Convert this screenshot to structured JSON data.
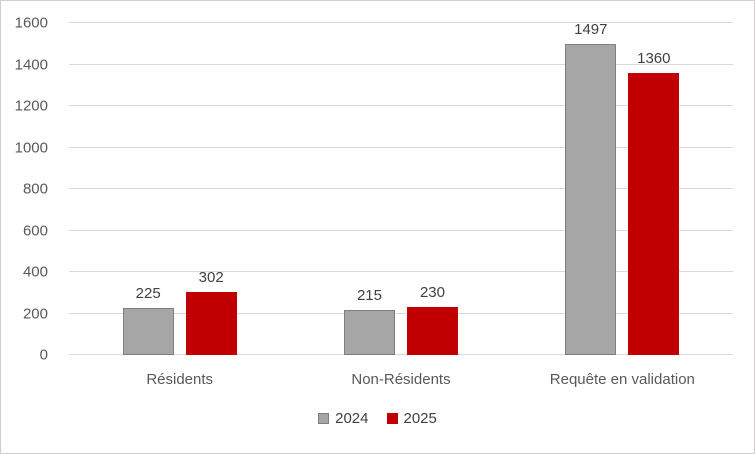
{
  "chart_data": {
    "type": "bar",
    "categories": [
      "Résidents",
      "Non-Résidents",
      "Requête en validation"
    ],
    "series": [
      {
        "name": "2024",
        "values": [
          225,
          215,
          1497
        ],
        "color": "#A6A6A6",
        "border_color": "#7F7F7F"
      },
      {
        "name": "2025",
        "values": [
          302,
          230,
          1360
        ],
        "color": "#C00000",
        "border_color": "#C00000"
      }
    ],
    "title": "",
    "xlabel": "",
    "ylabel": "",
    "ylim": [
      0,
      1600
    ],
    "yticks": [
      0,
      200,
      400,
      600,
      800,
      1000,
      1200,
      1400,
      1600
    ],
    "grid": true,
    "legend_position": "bottom",
    "value_labels": true
  },
  "colors": {
    "background": "#FFFFFF",
    "frame_border": "#D0CECE",
    "gridline": "#D9D9D9",
    "axis_text": "#595959",
    "value_label_text": "#404040"
  }
}
